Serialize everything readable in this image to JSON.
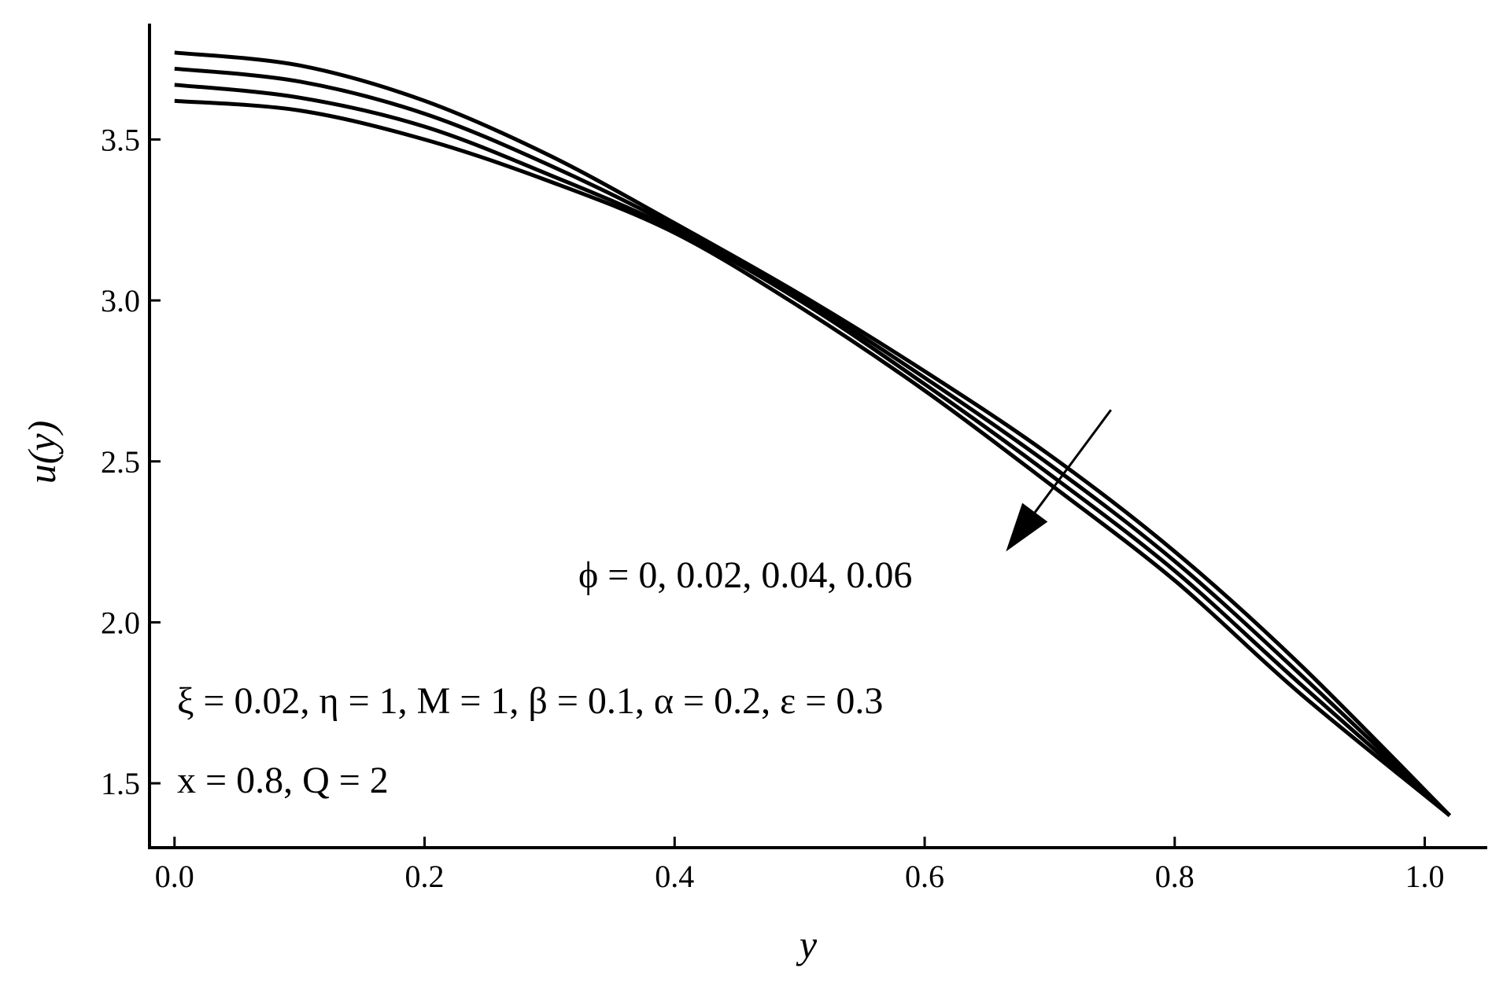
{
  "chart_data": {
    "type": "line",
    "xlabel": "y",
    "ylabel": "u(y)",
    "xlim": [
      -0.02,
      1.05
    ],
    "ylim": [
      1.3,
      3.86
    ],
    "x_ticks": [
      "0.0",
      "0.2",
      "0.4",
      "0.6",
      "0.8",
      "1.0"
    ],
    "x_tick_values": [
      0,
      0.2,
      0.4,
      0.6,
      0.8,
      1.0
    ],
    "y_ticks": [
      "1.5",
      "2.0",
      "2.5",
      "3.0",
      "3.5"
    ],
    "y_tick_values": [
      1.5,
      2.0,
      2.5,
      3.0,
      3.5
    ],
    "x": [
      0,
      0.1,
      0.2,
      0.3,
      0.4,
      0.5,
      0.6,
      0.7,
      0.8,
      0.9,
      1.02
    ],
    "series": [
      {
        "values": [
          3.77,
          3.73,
          3.62,
          3.45,
          3.24,
          3.02,
          2.78,
          2.52,
          2.22,
          1.87,
          1.4
        ]
      },
      {
        "values": [
          3.72,
          3.68,
          3.58,
          3.42,
          3.23,
          3.01,
          2.76,
          2.49,
          2.19,
          1.84,
          1.4
        ]
      },
      {
        "values": [
          3.67,
          3.63,
          3.54,
          3.39,
          3.22,
          3.0,
          2.74,
          2.46,
          2.16,
          1.81,
          1.4
        ]
      },
      {
        "values": [
          3.62,
          3.59,
          3.5,
          3.37,
          3.21,
          2.98,
          2.72,
          2.43,
          2.13,
          1.78,
          1.4
        ]
      }
    ],
    "arrow": {
      "from": [
        0.749,
        2.66
      ],
      "to": [
        0.665,
        2.22
      ]
    },
    "annotations": {
      "phi": "ϕ = 0, 0.02, 0.04, 0.06",
      "params_line1": "ξ  = 0.02, η = 1, M = 1, β = 0.1, α = 0.2, ε = 0.3",
      "params_line2": "x = 0.8, Q = 2"
    },
    "grid": false
  }
}
